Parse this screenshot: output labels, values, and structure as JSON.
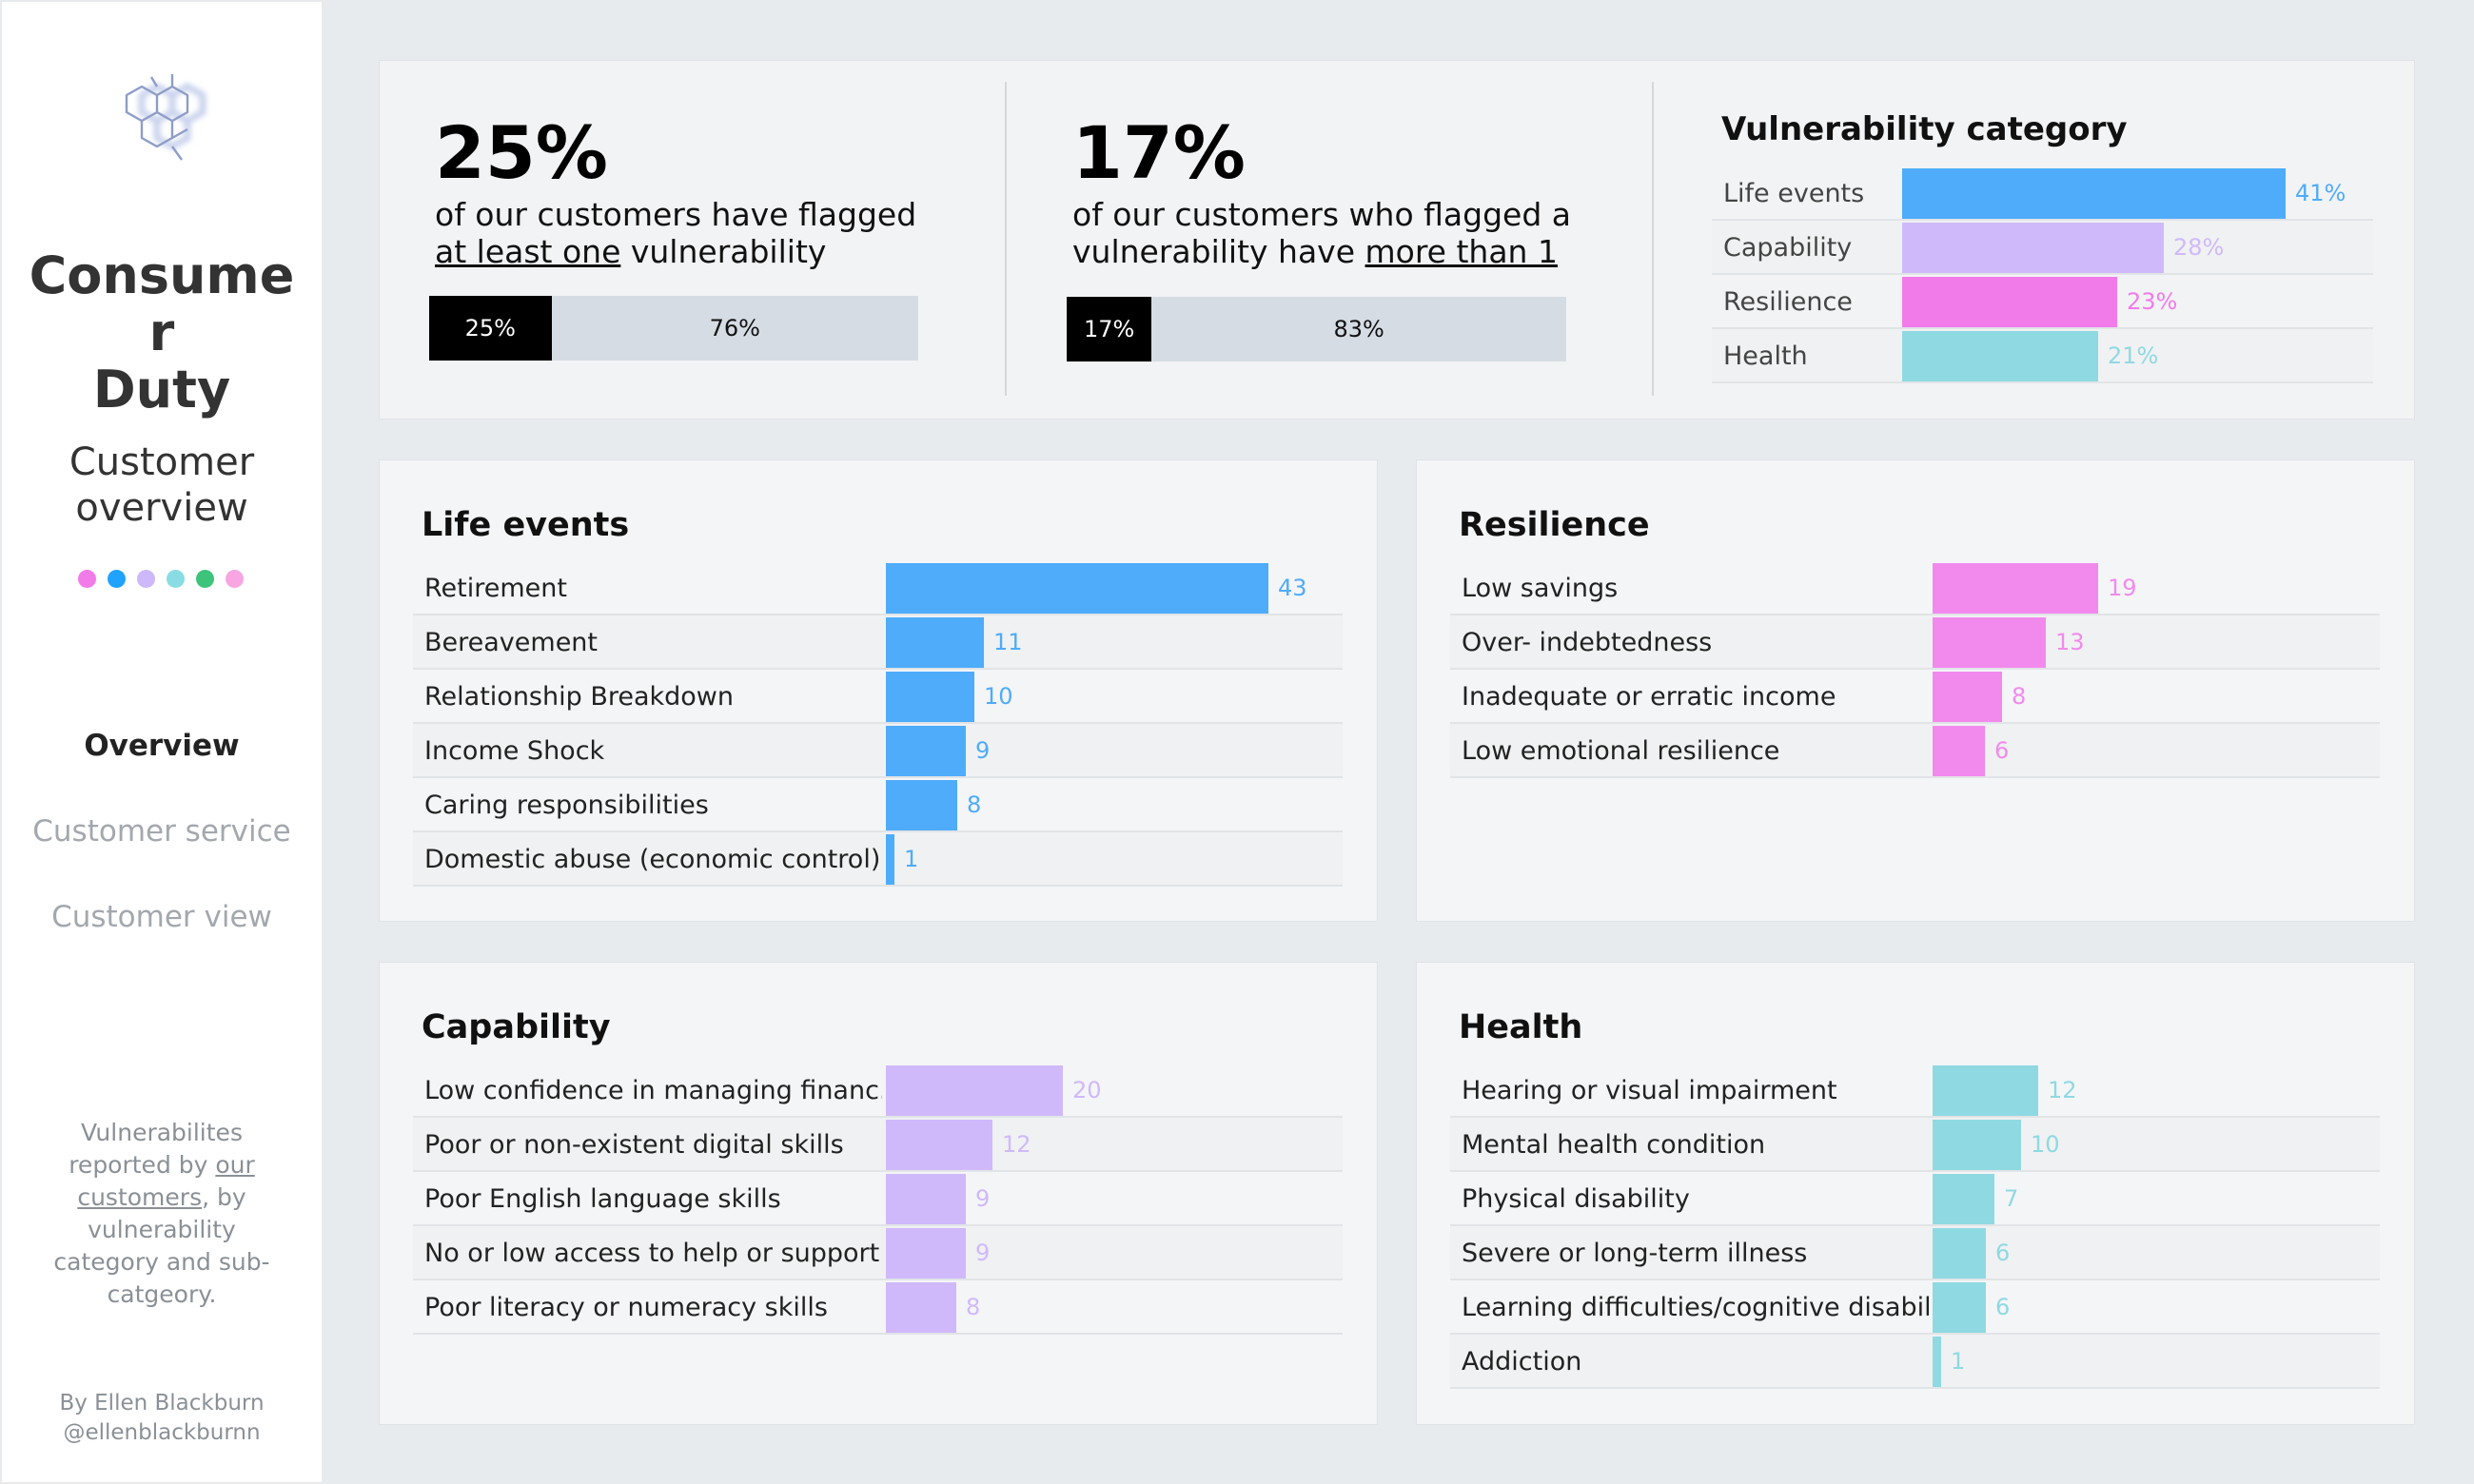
{
  "sidebar": {
    "title": "Consume r Duty",
    "subtitle": "Customer overview",
    "dot_colors": [
      "#f27bea",
      "#1fa3ff",
      "#ccb8fb",
      "#8adce4",
      "#3ec47a",
      "#f7a6e2"
    ],
    "nav": {
      "overview": "Overview",
      "customer_service": "Customer service",
      "customer_view": "Customer view"
    },
    "note": {
      "part1": "Vulnerabilites reported by ",
      "link": "our customers",
      "part2": ", by vulnerability category and sub-catgeory."
    },
    "credit_name": "By Ellen Blackburn",
    "credit_handle": "@ellenblackburnn",
    "logo_icon": "hexagon-molecule-icon"
  },
  "kpis": [
    {
      "big": "25%",
      "line1": "of our customers have flagged",
      "line2_u": "at least one",
      "line2_rest": " vulnerability",
      "bar_a_label": "25%",
      "bar_b_label": "76%",
      "fraction": 0.25
    },
    {
      "big": "17%",
      "line1": "of our customers who flagged a",
      "line2_pre": "vulnerability have ",
      "line2_u": "more than 1",
      "bar_a_label": "17%",
      "bar_b_label": "83%",
      "fraction": 0.17
    }
  ],
  "category": {
    "title": "Vulnerability category",
    "rows": [
      {
        "label": "Life events",
        "value": 41,
        "value_label": "41%",
        "color": "#4eacfb"
      },
      {
        "label": "Capability",
        "value": 28,
        "value_label": "28%",
        "color": "#cfb9fb"
      },
      {
        "label": "Resilience",
        "value": 23,
        "value_label": "23%",
        "color": "#f27bea"
      },
      {
        "label": "Health",
        "value": 21,
        "value_label": "21%",
        "color": "#8fd9e2"
      }
    ]
  },
  "panels": {
    "life_events": {
      "title": "Life events",
      "color": "#4eacfb",
      "rows": [
        {
          "label": "Retirement",
          "value": 43
        },
        {
          "label": "Bereavement",
          "value": 11
        },
        {
          "label": "Relationship Breakdown",
          "value": 10
        },
        {
          "label": "Income Shock",
          "value": 9
        },
        {
          "label": "Caring responsibilities",
          "value": 8
        },
        {
          "label": "Domestic abuse (economic control)",
          "value": 1
        }
      ]
    },
    "resilience": {
      "title": "Resilience",
      "color": "#f28aed",
      "rows": [
        {
          "label": "Low savings",
          "value": 19
        },
        {
          "label": "Over- indebtedness",
          "value": 13
        },
        {
          "label": "Inadequate or erratic income",
          "value": 8
        },
        {
          "label": "Low emotional resilience",
          "value": 6
        }
      ]
    },
    "capability": {
      "title": "Capability",
      "color": "#cfb9fb",
      "rows": [
        {
          "label": "Low confidence in managing financ..",
          "value": 20
        },
        {
          "label": "Poor or non-existent digital skills",
          "value": 12
        },
        {
          "label": "Poor English language skills",
          "value": 9
        },
        {
          "label": "No or low access to help or support",
          "value": 9
        },
        {
          "label": "Poor literacy or numeracy skills",
          "value": 8
        }
      ]
    },
    "health": {
      "title": "Health",
      "color": "#8fd9e2",
      "rows": [
        {
          "label": "Hearing or visual impairment",
          "value": 12
        },
        {
          "label": "Mental health condition",
          "value": 10
        },
        {
          "label": "Physical disability",
          "value": 7
        },
        {
          "label": "Severe or long-term illness",
          "value": 6
        },
        {
          "label": "Learning difficulties/cognitive disabil..",
          "value": 6
        },
        {
          "label": "Addiction",
          "value": 1
        }
      ]
    }
  }
}
